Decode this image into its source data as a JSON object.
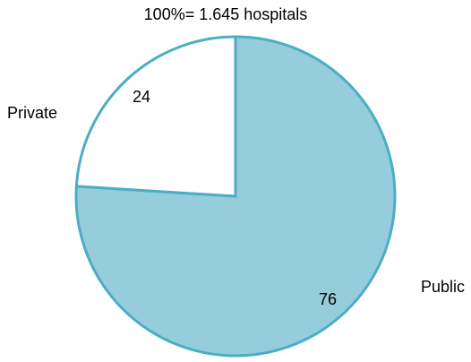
{
  "chart_data": {
    "type": "pie",
    "title": "100%= 1.645 hospitals",
    "categories": [
      "Public",
      "Private"
    ],
    "values": [
      76,
      24
    ],
    "value_labels": [
      "76",
      "24"
    ],
    "colors": {
      "Public": "#95cddc",
      "Private": "#ffffff",
      "stroke": "#4aaec4"
    }
  }
}
